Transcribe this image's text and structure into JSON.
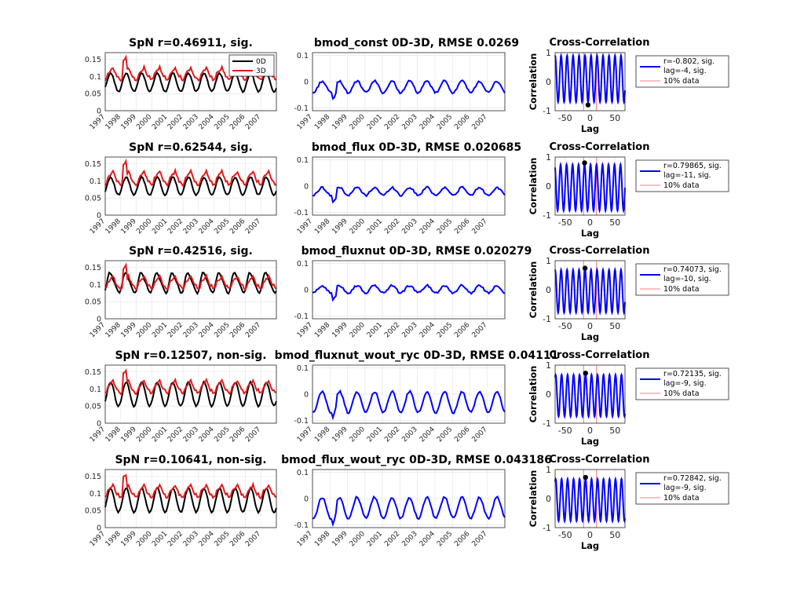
{
  "figure": {
    "type": "matlab-figure",
    "background": "#ffffff"
  },
  "years": [
    "1997",
    "1998",
    "1999",
    "2000",
    "2001",
    "2002",
    "2003",
    "2004",
    "2005",
    "2006",
    "2007"
  ],
  "colors": {
    "zero_d": "#000000",
    "three_d": "#e31a1c",
    "diff": "#0000ff",
    "marker": "#000000",
    "vline": "#ff5050"
  },
  "rows": [
    {
      "ts_title": "SpN r=0.46911, sig.",
      "diff_title": "bmod_const 0D-3D, RMSE 0.0269",
      "cc_title": "Cross-Correlation",
      "legend_ts": [
        "0D",
        "3D"
      ],
      "cc_legend": [
        "r=-0.802, sig.",
        "lag=-4, sig.",
        "10% data"
      ],
      "cc_r": -0.802,
      "cc_lag": -4
    },
    {
      "ts_title": "SpN r=0.62544, sig.",
      "diff_title": "bmod_flux 0D-3D, RMSE 0.020685",
      "cc_title": "Cross-Correlation",
      "cc_legend": [
        "r=0.79865, sig.",
        "lag=-11, sig.",
        "10% data"
      ],
      "cc_r": 0.79865,
      "cc_lag": -11
    },
    {
      "ts_title": "SpN r=0.42516, sig.",
      "diff_title": "bmod_fluxnut 0D-3D, RMSE 0.020279",
      "cc_title": "Cross-Correlation",
      "cc_legend": [
        "r=0.74073, sig.",
        "lag=-10, sig.",
        "10% data"
      ],
      "cc_r": 0.74073,
      "cc_lag": -10
    },
    {
      "ts_title": "SpN r=0.12507, non-sig.",
      "diff_title": "bmod_fluxnut_wout_ryc 0D-3D, RMSE 0.04111",
      "cc_title": "Cross-Correlation",
      "cc_legend": [
        "r=0.72135, sig.",
        "lag=-9, sig.",
        "10% data"
      ],
      "cc_r": 0.72135,
      "cc_lag": -9
    },
    {
      "ts_title": "SpN r=0.10641, non-sig.",
      "diff_title": "bmod_flux_wout_ryc 0D-3D, RMSE 0.043186",
      "cc_title": "Cross-Correlation",
      "cc_legend": [
        "r=0.72842, sig.",
        "lag=-9, sig.",
        "10% data"
      ],
      "cc_r": 0.72842,
      "cc_lag": -9
    }
  ],
  "chart_data": [
    {
      "type": "line",
      "title": "SpN r=0.46911, sig.",
      "x": [
        "1997",
        "1998",
        "1999",
        "2000",
        "2001",
        "2002",
        "2003",
        "2004",
        "2005",
        "2006",
        "2007"
      ],
      "ylim": [
        0,
        0.17
      ],
      "yticks": [
        "0",
        "0.05",
        "0.1",
        "0.15"
      ],
      "grid": true,
      "legend_placement": "top-right",
      "series": [
        {
          "name": "0D",
          "amplitude": 0.027,
          "mean": 0.083
        },
        {
          "name": "3D",
          "amplitude": 0.016,
          "mean": 0.105
        }
      ]
    },
    {
      "type": "line",
      "title": "bmod_const 0D-3D, RMSE 0.0269",
      "x": [
        "1997",
        "1998",
        "1999",
        "2000",
        "2001",
        "2002",
        "2003",
        "2004",
        "2005",
        "2006",
        "2007"
      ],
      "ylim": [
        -0.11,
        0.11
      ],
      "yticks": [
        "-0.1",
        "0",
        "0.1"
      ],
      "grid": true,
      "series": [
        {
          "mean": -0.02,
          "amplitude": 0.022
        }
      ]
    },
    {
      "type": "line",
      "title": "Cross-Correlation",
      "xlabel": "Lag",
      "ylabel": "Correlation",
      "xlim": [
        -70,
        70
      ],
      "ylim": [
        -1,
        1
      ],
      "xticks": [
        "-50",
        "0",
        "50"
      ],
      "yticks": [
        "-1",
        "0",
        "1"
      ],
      "grid": true,
      "series": [
        {
          "name": "r=-0.802, sig. lag=-4, sig."
        },
        {
          "name": "10% data"
        }
      ],
      "peak": {
        "lag": -4,
        "r": -0.802
      }
    },
    {
      "type": "line",
      "title": "SpN r=0.62544, sig.",
      "x": [
        "1997",
        "1998",
        "1999",
        "2000",
        "2001",
        "2002",
        "2003",
        "2004",
        "2005",
        "2006",
        "2007"
      ],
      "ylim": [
        0,
        0.17
      ],
      "yticks": [
        "0",
        "0.05",
        "0.1",
        "0.15"
      ],
      "grid": true,
      "series": [
        {
          "amplitude": 0.026,
          "mean": 0.085
        },
        {
          "amplitude": 0.018,
          "mean": 0.105
        }
      ]
    },
    {
      "type": "line",
      "title": "bmod_flux 0D-3D, RMSE 0.020685",
      "x": [
        "1997",
        "1998",
        "1999",
        "2000",
        "2001",
        "2002",
        "2003",
        "2004",
        "2005",
        "2006",
        "2007"
      ],
      "ylim": [
        -0.11,
        0.11
      ],
      "yticks": [
        "-0.1",
        "0",
        "0.1"
      ],
      "grid": true,
      "series": [
        {
          "mean": -0.02,
          "amplitude": 0.015
        }
      ]
    },
    {
      "type": "line",
      "title": "Cross-Correlation",
      "xlabel": "Lag",
      "ylabel": "Correlation",
      "xlim": [
        -70,
        70
      ],
      "ylim": [
        -1,
        1
      ],
      "grid": true,
      "series": [
        {
          "name": "r=0.79865, sig. lag=-11, sig."
        },
        {
          "name": "10% data"
        }
      ],
      "peak": {
        "lag": -11,
        "r": 0.79865
      }
    },
    {
      "type": "line",
      "title": "SpN r=0.42516, sig.",
      "x": [
        "1997",
        "1998",
        "1999",
        "2000",
        "2001",
        "2002",
        "2003",
        "2004",
        "2005",
        "2006",
        "2007"
      ],
      "ylim": [
        0,
        0.17
      ],
      "yticks": [
        "0",
        "0.05",
        "0.1",
        "0.15"
      ],
      "grid": true,
      "series": [
        {
          "amplitude": 0.028,
          "mean": 0.105
        },
        {
          "amplitude": 0.016,
          "mean": 0.103
        }
      ]
    },
    {
      "type": "line",
      "title": "bmod_fluxnut 0D-3D, RMSE 0.020279",
      "x": [
        "1997",
        "1998",
        "1999",
        "2000",
        "2001",
        "2002",
        "2003",
        "2004",
        "2005",
        "2006",
        "2007"
      ],
      "ylim": [
        -0.11,
        0.11
      ],
      "yticks": [
        "-0.1",
        "0",
        "0.1"
      ],
      "grid": true,
      "series": [
        {
          "mean": 0.002,
          "amplitude": 0.014
        }
      ]
    },
    {
      "type": "line",
      "title": "Cross-Correlation",
      "xlabel": "Lag",
      "ylabel": "Correlation",
      "xlim": [
        -70,
        70
      ],
      "ylim": [
        -1,
        1
      ],
      "grid": true,
      "series": [
        {
          "name": "r=0.74073, sig. lag=-10, sig."
        },
        {
          "name": "10% data"
        }
      ],
      "peak": {
        "lag": -10,
        "r": 0.74073
      }
    },
    {
      "type": "line",
      "title": "SpN r=0.12507, non-sig.",
      "x": [
        "1997",
        "1998",
        "1999",
        "2000",
        "2001",
        "2002",
        "2003",
        "2004",
        "2005",
        "2006",
        "2007"
      ],
      "ylim": [
        0,
        0.17
      ],
      "yticks": [
        "0",
        "0.05",
        "0.1",
        "0.15"
      ],
      "grid": true,
      "series": [
        {
          "amplitude": 0.035,
          "mean": 0.085
        },
        {
          "amplitude": 0.016,
          "mean": 0.103
        }
      ]
    },
    {
      "type": "line",
      "title": "bmod_fluxnut_wout_ryc 0D-3D, RMSE 0.04111",
      "x": [
        "1997",
        "1998",
        "1999",
        "2000",
        "2001",
        "2002",
        "2003",
        "2004",
        "2005",
        "2006",
        "2007"
      ],
      "ylim": [
        -0.11,
        0.11
      ],
      "yticks": [
        "-0.1",
        "0",
        "0.1"
      ],
      "grid": true,
      "series": [
        {
          "mean": -0.03,
          "amplitude": 0.04
        }
      ]
    },
    {
      "type": "line",
      "title": "Cross-Correlation",
      "xlabel": "Lag",
      "ylabel": "Correlation",
      "xlim": [
        -70,
        70
      ],
      "ylim": [
        -1,
        1
      ],
      "grid": true,
      "series": [
        {
          "name": "r=0.72135, sig. lag=-9, sig."
        },
        {
          "name": "10% data"
        }
      ],
      "peak": {
        "lag": -9,
        "r": 0.72135
      }
    },
    {
      "type": "line",
      "title": "SpN r=0.10641, non-sig.",
      "x": [
        "1997",
        "1998",
        "1999",
        "2000",
        "2001",
        "2002",
        "2003",
        "2004",
        "2005",
        "2006",
        "2007"
      ],
      "ylim": [
        0,
        0.17
      ],
      "yticks": [
        "0",
        "0.05",
        "0.1",
        "0.15"
      ],
      "grid": true,
      "series": [
        {
          "amplitude": 0.035,
          "mean": 0.08
        },
        {
          "amplitude": 0.016,
          "mean": 0.103
        }
      ]
    },
    {
      "type": "line",
      "title": "bmod_flux_wout_ryc 0D-3D, RMSE 0.043186",
      "x": [
        "1997",
        "1998",
        "1999",
        "2000",
        "2001",
        "2002",
        "2003",
        "2004",
        "2005",
        "2006",
        "2007"
      ],
      "ylim": [
        -0.11,
        0.11
      ],
      "yticks": [
        "-0.1",
        "0",
        "0.1"
      ],
      "grid": true,
      "series": [
        {
          "mean": -0.035,
          "amplitude": 0.04
        }
      ]
    },
    {
      "type": "line",
      "title": "Cross-Correlation",
      "xlabel": "Lag",
      "ylabel": "Correlation",
      "xlim": [
        -70,
        70
      ],
      "ylim": [
        -1,
        1
      ],
      "grid": true,
      "series": [
        {
          "name": "r=0.72842, sig. lag=-9, sig."
        },
        {
          "name": "10% data"
        }
      ],
      "peak": {
        "lag": -9,
        "r": 0.72842
      }
    }
  ]
}
